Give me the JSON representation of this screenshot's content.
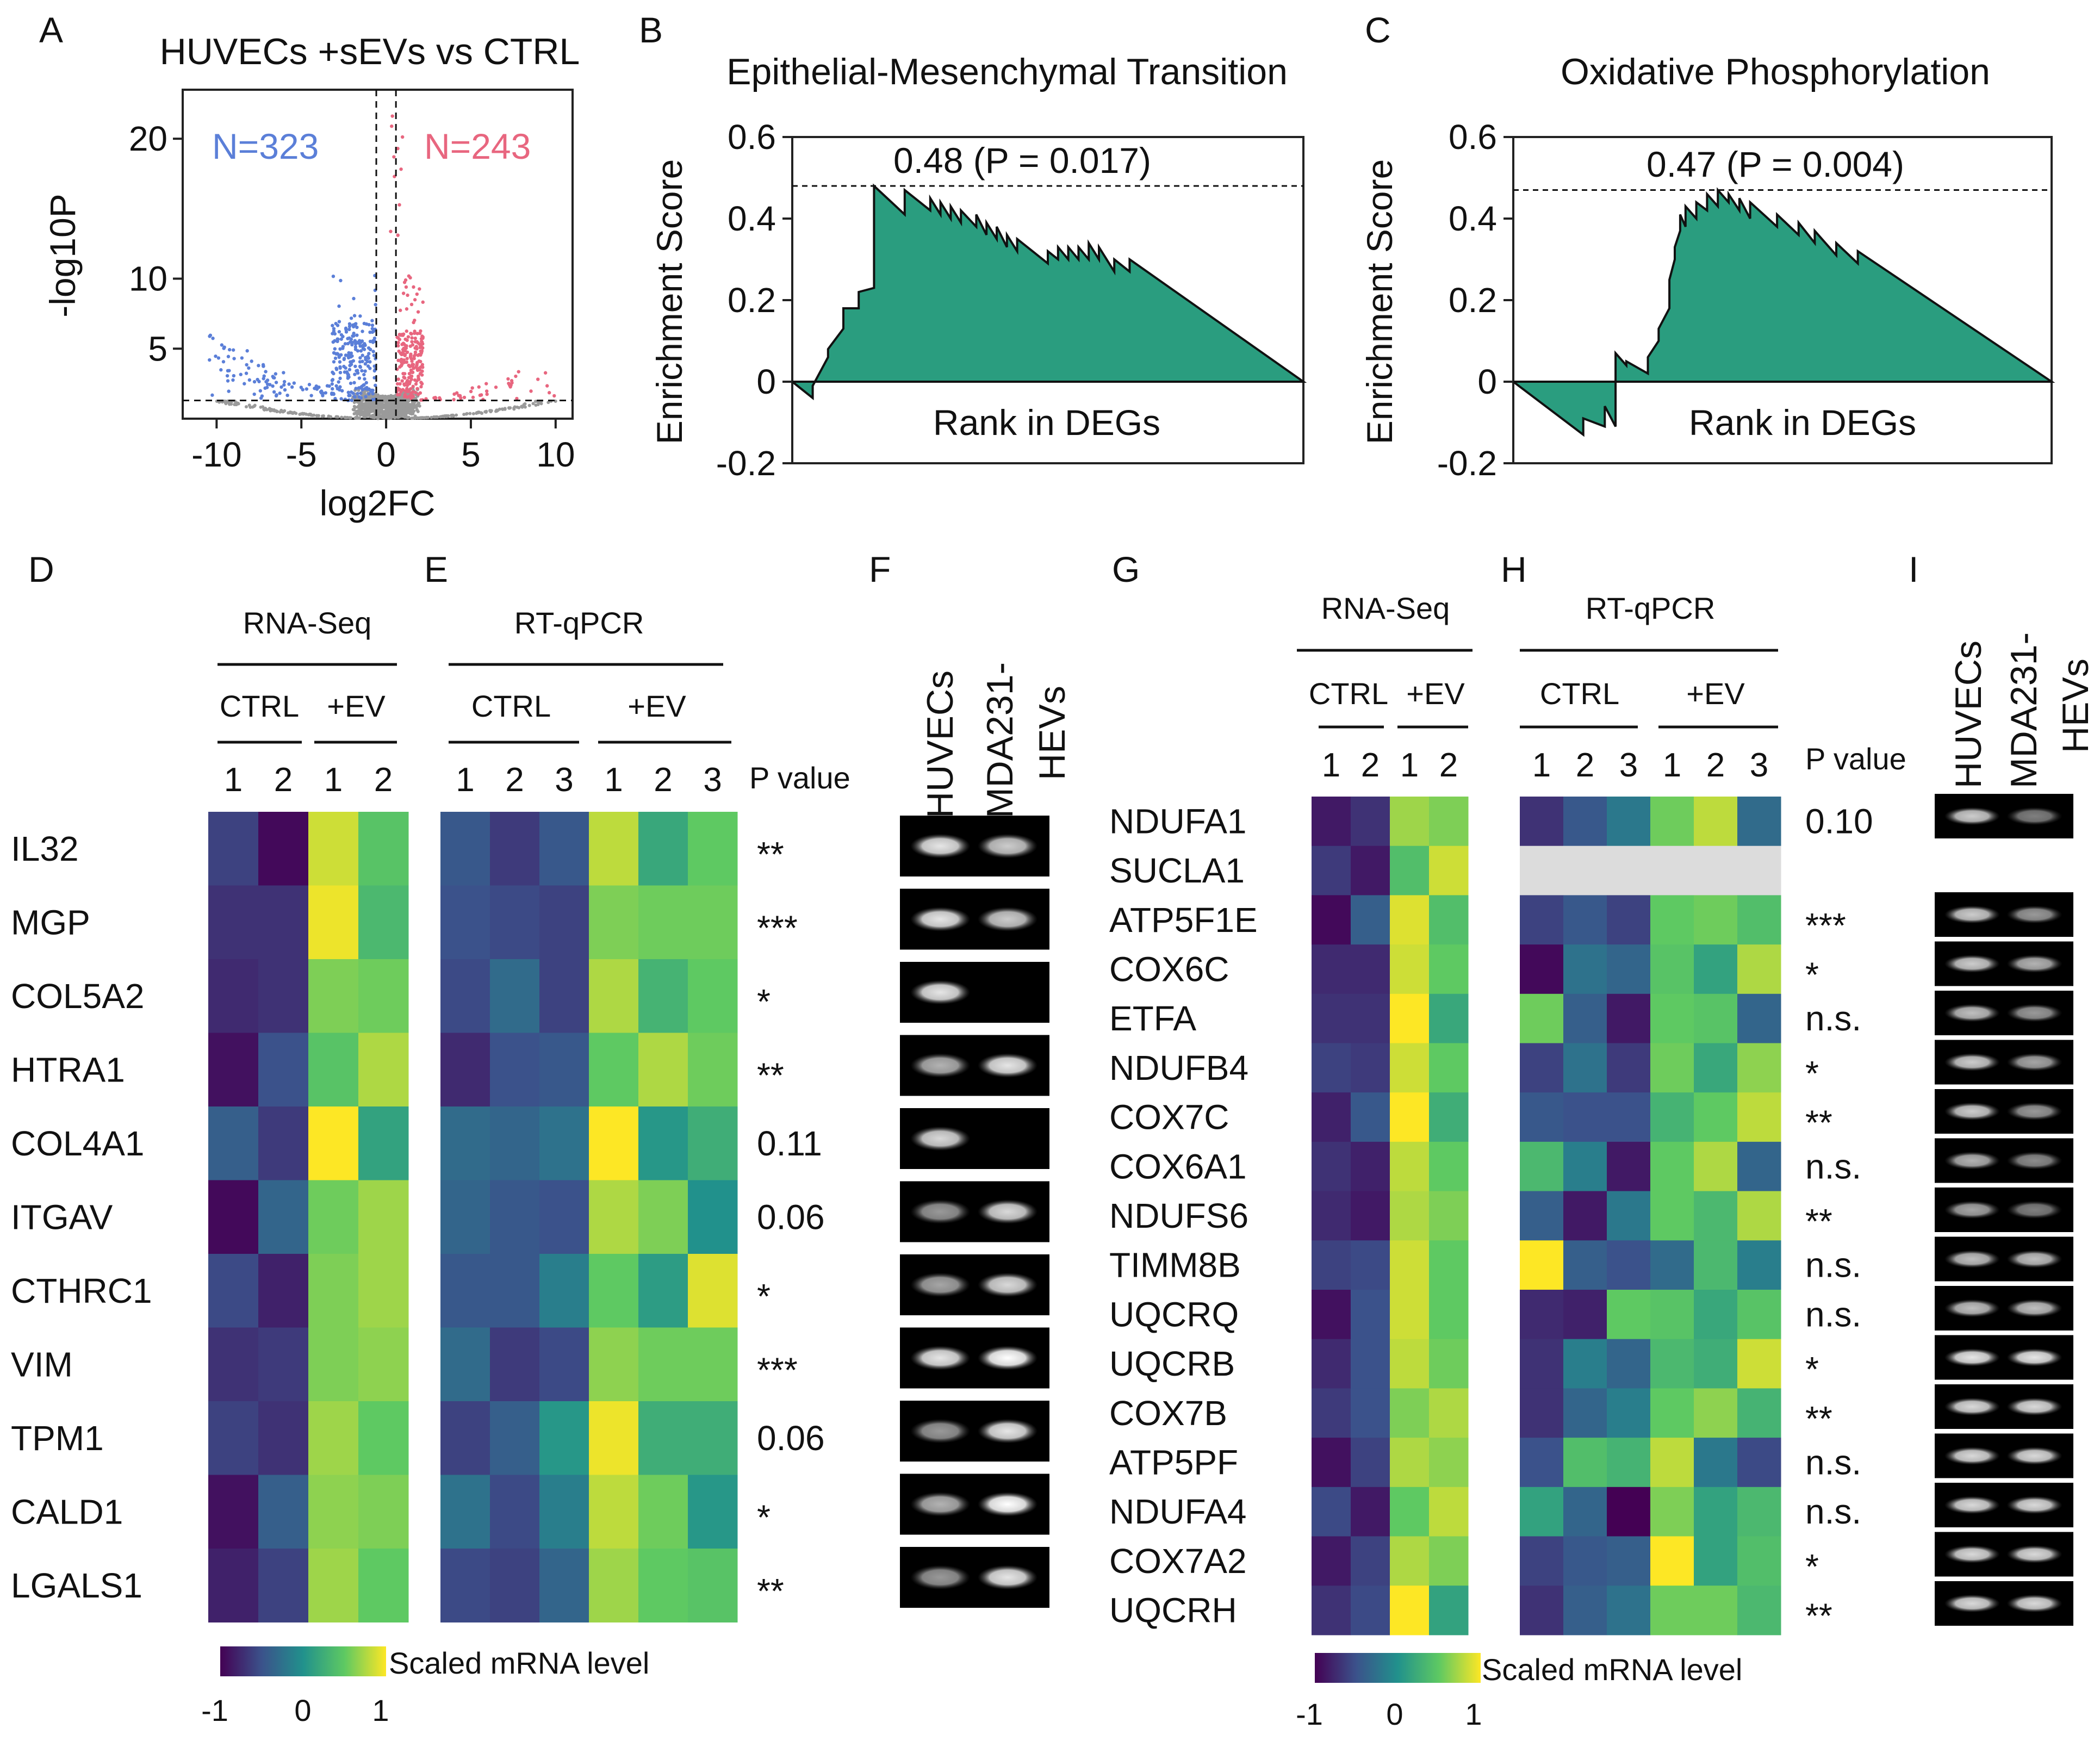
{
  "panels": {
    "A": "A",
    "B": "B",
    "C": "C",
    "D": "D",
    "E": "E",
    "F": "F",
    "G": "G",
    "H": "H",
    "I": "I"
  },
  "colors": {
    "down": "#5b7fd8",
    "up": "#e8667f",
    "ns": "#9a9a9a",
    "gsea_fill": "#2a9d7f",
    "lane": "#000000",
    "missing": "#dcdcdc"
  },
  "chart_data": [
    {
      "id": "A",
      "type": "scatter",
      "title": "HUVECs +sEVs vs CTRL",
      "xlabel": "log2FC",
      "ylabel": "-log10P",
      "xlim": [
        -12,
        11
      ],
      "ylim": [
        0,
        23.5
      ],
      "xticks": [
        -10,
        -5,
        0,
        5,
        10
      ],
      "xtick_labels": [
        "-10",
        "-5",
        "0",
        "5",
        "10"
      ],
      "yticks": [
        5,
        10,
        20
      ],
      "ytick_labels": [
        "5",
        "10",
        "20"
      ],
      "threshold_x": [
        -0.58,
        0.58
      ],
      "threshold_y": 1.3,
      "annotations": {
        "down": "N=323",
        "up": "N=243"
      },
      "series": [
        {
          "name": "down",
          "count": 323
        },
        {
          "name": "up",
          "count": 243
        },
        {
          "name": "not significant"
        }
      ]
    },
    {
      "id": "B",
      "type": "area",
      "title": "Epithelial-Mesenchymal Transition",
      "ylabel": "Enrichment Score",
      "xlabel": "Rank in DEGs",
      "ylim": [
        -0.2,
        0.6
      ],
      "yticks": [
        -0.2,
        0,
        0.2,
        0.4,
        0.6
      ],
      "ytick_labels": [
        "-0.2",
        "0",
        "0.2",
        "0.4",
        "0.6"
      ],
      "peak_label": "0.48 (P = 0.017)",
      "peak": 0.48,
      "x": [
        0,
        0.04,
        0.04,
        0.07,
        0.07,
        0.1,
        0.1,
        0.13,
        0.13,
        0.16,
        0.16,
        0.22,
        0.22,
        0.27,
        0.27,
        0.29,
        0.29,
        0.31,
        0.31,
        0.33,
        0.33,
        0.36,
        0.36,
        0.38,
        0.38,
        0.4,
        0.4,
        0.42,
        0.42,
        0.44,
        0.44,
        0.5,
        0.5,
        0.52,
        0.52,
        0.54,
        0.54,
        0.56,
        0.56,
        0.58,
        0.58,
        0.6,
        0.6,
        0.63,
        0.63,
        0.66,
        0.66,
        1.0
      ],
      "y": [
        0,
        -0.04,
        -0.01,
        0.06,
        0.08,
        0.13,
        0.18,
        0.18,
        0.22,
        0.23,
        0.48,
        0.41,
        0.47,
        0.42,
        0.45,
        0.41,
        0.44,
        0.4,
        0.43,
        0.39,
        0.42,
        0.38,
        0.41,
        0.36,
        0.39,
        0.35,
        0.38,
        0.33,
        0.36,
        0.32,
        0.35,
        0.29,
        0.32,
        0.3,
        0.33,
        0.3,
        0.33,
        0.3,
        0.33,
        0.3,
        0.34,
        0.3,
        0.33,
        0.27,
        0.3,
        0.27,
        0.3,
        0
      ]
    },
    {
      "id": "C",
      "type": "area",
      "title": "Oxidative Phosphorylation",
      "ylabel": "Enrichment Score",
      "xlabel": "Rank in DEGs",
      "ylim": [
        -0.2,
        0.6
      ],
      "yticks": [
        -0.2,
        0,
        0.2,
        0.4,
        0.6
      ],
      "ytick_labels": [
        "-0.2",
        "0",
        "0.2",
        "0.4",
        "0.6"
      ],
      "peak_label": "0.47 (P = 0.004)",
      "peak": 0.47,
      "x": [
        0,
        0.13,
        0.13,
        0.17,
        0.17,
        0.19,
        0.19,
        0.21,
        0.21,
        0.25,
        0.25,
        0.27,
        0.27,
        0.29,
        0.29,
        0.3,
        0.3,
        0.31,
        0.31,
        0.32,
        0.32,
        0.34,
        0.34,
        0.36,
        0.36,
        0.38,
        0.38,
        0.4,
        0.4,
        0.42,
        0.42,
        0.44,
        0.44,
        0.49,
        0.49,
        0.53,
        0.53,
        0.56,
        0.56,
        0.6,
        0.6,
        0.64,
        0.64,
        1.0
      ],
      "y": [
        0,
        -0.13,
        -0.09,
        -0.11,
        -0.06,
        -0.11,
        0.07,
        0.04,
        0.05,
        0.02,
        0.06,
        0.1,
        0.13,
        0.18,
        0.25,
        0.3,
        0.33,
        0.37,
        0.41,
        0.38,
        0.43,
        0.4,
        0.44,
        0.42,
        0.46,
        0.43,
        0.47,
        0.44,
        0.46,
        0.42,
        0.45,
        0.4,
        0.44,
        0.38,
        0.41,
        0.36,
        0.39,
        0.34,
        0.37,
        0.31,
        0.34,
        0.29,
        0.32,
        0
      ]
    },
    {
      "id": "D-E",
      "type": "heatmap",
      "rnaseq_header": "RNA-Seq",
      "qpcr_header": "RT-qPCR",
      "ctrl_label": "CTRL",
      "ev_label": "+EV",
      "pvalue_header": "P value",
      "rnaseq_reps": [
        "1",
        "2",
        "1",
        "2"
      ],
      "qpcr_reps": [
        "1",
        "2",
        "3",
        "1",
        "2",
        "3"
      ],
      "genes": [
        "IL32",
        "MGP",
        "COL5A2",
        "HTRA1",
        "COL4A1",
        "ITGAV",
        "CTHRC1",
        "VIM",
        "TPM1",
        "CALD1",
        "LGALS1"
      ],
      "pvalues": [
        "**",
        "***",
        "*",
        "**",
        "0.11",
        "0.06",
        "*",
        "***",
        "0.06",
        "*",
        "**"
      ],
      "rnaseq": [
        [
          -0.6,
          -0.95,
          0.85,
          0.45
        ],
        [
          -0.7,
          -0.7,
          0.95,
          0.35
        ],
        [
          -0.75,
          -0.7,
          0.6,
          0.55
        ],
        [
          -0.9,
          -0.5,
          0.45,
          0.75
        ],
        [
          -0.4,
          -0.65,
          1.0,
          0.15
        ],
        [
          -0.95,
          -0.35,
          0.55,
          0.7
        ],
        [
          -0.55,
          -0.8,
          0.6,
          0.7
        ],
        [
          -0.7,
          -0.65,
          0.6,
          0.65
        ],
        [
          -0.6,
          -0.7,
          0.7,
          0.5
        ],
        [
          -0.9,
          -0.4,
          0.65,
          0.6
        ],
        [
          -0.8,
          -0.6,
          0.7,
          0.5
        ]
      ],
      "qpcr": [
        [
          -0.45,
          -0.65,
          -0.45,
          0.8,
          0.2,
          0.5
        ],
        [
          -0.5,
          -0.55,
          -0.6,
          0.6,
          0.55,
          0.55
        ],
        [
          -0.55,
          -0.3,
          -0.6,
          0.75,
          0.3,
          0.5
        ],
        [
          -0.75,
          -0.5,
          -0.45,
          0.5,
          0.75,
          0.55
        ],
        [
          -0.3,
          -0.35,
          -0.25,
          1.0,
          0.05,
          0.25
        ],
        [
          -0.35,
          -0.45,
          -0.5,
          0.75,
          0.6,
          0.0
        ],
        [
          -0.45,
          -0.45,
          -0.15,
          0.5,
          0.1,
          0.9
        ],
        [
          -0.3,
          -0.65,
          -0.55,
          0.65,
          0.55,
          0.55
        ],
        [
          -0.6,
          -0.4,
          0.05,
          0.95,
          0.25,
          0.25
        ],
        [
          -0.25,
          -0.55,
          -0.15,
          0.8,
          0.55,
          0.05
        ],
        [
          -0.55,
          -0.6,
          -0.35,
          0.7,
          0.5,
          0.45
        ]
      ],
      "legend_label": "Scaled mRNA level",
      "legend_ticks": [
        "-1",
        "0",
        "1"
      ]
    },
    {
      "id": "G-H",
      "type": "heatmap",
      "rnaseq_header": "RNA-Seq",
      "qpcr_header": "RT-qPCR",
      "ctrl_label": "CTRL",
      "ev_label": "+EV",
      "pvalue_header": "P value",
      "rnaseq_reps": [
        "1",
        "2",
        "1",
        "2"
      ],
      "qpcr_reps": [
        "1",
        "2",
        "3",
        "1",
        "2",
        "3"
      ],
      "genes": [
        "NDUFA1",
        "SUCLA1",
        "ATP5F1E",
        "COX6C",
        "ETFA",
        "NDUFB4",
        "COX7C",
        "COX6A1",
        "NDUFS6",
        "TIMM8B",
        "UQCRQ",
        "UQCRB",
        "COX7B",
        "ATP5PF",
        "NDUFA4",
        "COX7A2",
        "UQCRH"
      ],
      "pvalues": [
        "0.10",
        "",
        "***",
        "*",
        "n.s.",
        "*",
        "**",
        "n.s.",
        "**",
        "n.s.",
        "n.s.",
        "*",
        "**",
        "n.s.",
        "n.s.",
        "*",
        "**"
      ],
      "rnaseq": [
        [
          -0.85,
          -0.7,
          0.7,
          0.6
        ],
        [
          -0.65,
          -0.85,
          0.4,
          0.85
        ],
        [
          -0.95,
          -0.4,
          0.9,
          0.4
        ],
        [
          -0.75,
          -0.75,
          0.85,
          0.5
        ],
        [
          -0.7,
          -0.7,
          1.0,
          0.2
        ],
        [
          -0.6,
          -0.65,
          0.85,
          0.5
        ],
        [
          -0.8,
          -0.45,
          1.0,
          0.25
        ],
        [
          -0.7,
          -0.8,
          0.8,
          0.5
        ],
        [
          -0.75,
          -0.85,
          0.75,
          0.6
        ],
        [
          -0.6,
          -0.55,
          0.85,
          0.5
        ],
        [
          -0.9,
          -0.5,
          0.85,
          0.5
        ],
        [
          -0.75,
          -0.5,
          0.8,
          0.55
        ],
        [
          -0.65,
          -0.5,
          0.6,
          0.75
        ],
        [
          -0.9,
          -0.6,
          0.75,
          0.65
        ],
        [
          -0.55,
          -0.85,
          0.5,
          0.8
        ],
        [
          -0.85,
          -0.6,
          0.75,
          0.6
        ],
        [
          -0.7,
          -0.55,
          1.0,
          0.15
        ]
      ],
      "qpcr": [
        [
          -0.7,
          -0.45,
          -0.2,
          0.55,
          0.8,
          -0.3
        ],
        [
          null,
          null,
          null,
          null,
          null,
          null
        ],
        [
          -0.6,
          -0.45,
          -0.6,
          0.5,
          0.55,
          0.4
        ],
        [
          -0.95,
          -0.25,
          -0.35,
          0.45,
          0.15,
          0.75
        ],
        [
          0.55,
          -0.4,
          -0.85,
          0.5,
          0.45,
          -0.35
        ],
        [
          -0.6,
          -0.25,
          -0.65,
          0.55,
          0.2,
          0.65
        ],
        [
          -0.45,
          -0.5,
          -0.5,
          0.3,
          0.5,
          0.8
        ],
        [
          0.35,
          -0.15,
          -0.85,
          0.5,
          0.75,
          -0.35
        ],
        [
          -0.4,
          -0.85,
          -0.2,
          0.5,
          0.35,
          0.75
        ],
        [
          1.0,
          -0.4,
          -0.5,
          -0.3,
          0.35,
          -0.15
        ],
        [
          -0.75,
          -0.8,
          0.5,
          0.45,
          0.2,
          0.45
        ],
        [
          -0.7,
          -0.15,
          -0.35,
          0.35,
          0.25,
          0.85
        ],
        [
          -0.7,
          -0.35,
          -0.15,
          0.5,
          0.65,
          0.3
        ],
        [
          -0.5,
          0.4,
          0.3,
          0.8,
          -0.2,
          -0.55
        ],
        [
          0.15,
          -0.35,
          -1.0,
          0.6,
          0.15,
          0.35
        ],
        [
          -0.6,
          -0.45,
          -0.4,
          1.0,
          0.15,
          0.4
        ],
        [
          -0.7,
          -0.4,
          -0.25,
          0.55,
          0.55,
          0.35
        ]
      ],
      "legend_label": "Scaled mRNA level",
      "legend_ticks": [
        "-1",
        "0",
        "1"
      ]
    },
    {
      "id": "F",
      "type": "table",
      "lanes": [
        "HUVECs",
        "MDA231-HEVs"
      ],
      "lane_label_1": "HUVECs",
      "lane_label_2a": "MDA231-",
      "lane_label_2b": "HEVs",
      "band_intensity": [
        [
          0.9,
          0.8
        ],
        [
          0.9,
          0.8
        ],
        [
          0.9,
          0.0
        ],
        [
          0.7,
          0.9
        ],
        [
          0.85,
          0.0
        ],
        [
          0.6,
          0.85
        ],
        [
          0.65,
          0.85
        ],
        [
          0.9,
          1.0
        ],
        [
          0.6,
          0.9
        ],
        [
          0.7,
          1.0
        ],
        [
          0.6,
          0.9
        ]
      ]
    },
    {
      "id": "I",
      "type": "table",
      "lanes": [
        "HUVECs",
        "MDA231-HEVs"
      ],
      "lane_label_1": "HUVECs",
      "lane_label_2a": "MDA231-",
      "lane_label_2b": "HEVs",
      "band_intensity": [
        [
          0.8,
          0.5
        ],
        null,
        [
          0.8,
          0.6
        ],
        [
          0.8,
          0.7
        ],
        [
          0.75,
          0.6
        ],
        [
          0.8,
          0.65
        ],
        [
          0.8,
          0.6
        ],
        [
          0.7,
          0.55
        ],
        [
          0.65,
          0.5
        ],
        [
          0.75,
          0.75
        ],
        [
          0.75,
          0.75
        ],
        [
          0.9,
          0.9
        ],
        [
          0.85,
          0.85
        ],
        [
          0.85,
          0.85
        ],
        [
          0.85,
          0.85
        ],
        [
          0.85,
          0.85
        ],
        [
          0.85,
          0.85
        ]
      ]
    }
  ]
}
